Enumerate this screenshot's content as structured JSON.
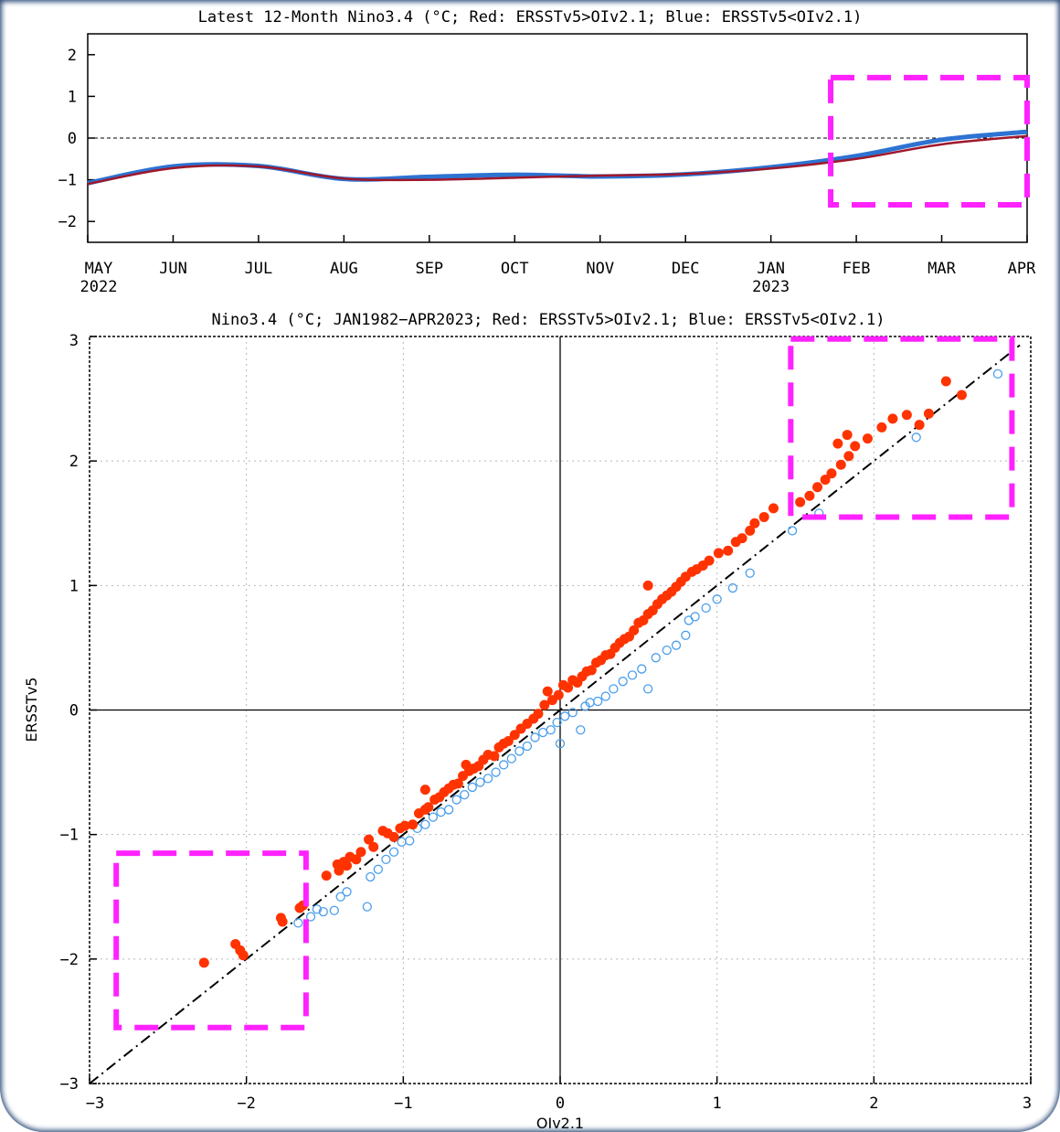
{
  "chart_data": [
    {
      "type": "line",
      "title": "Latest 12-Month Nino3.4 (°C; Red: ERSSTv5>OIv2.1; Blue: ERSSTv5<OIv2.1)",
      "x_tick_labels": [
        "MAY",
        "JUN",
        "JUL",
        "AUG",
        "SEP",
        "OCT",
        "NOV",
        "DEC",
        "JAN",
        "FEB",
        "MAR",
        "APR"
      ],
      "x_year_labels": [
        "2022",
        "2023"
      ],
      "y_tick_labels": [
        "2",
        "1",
        "0",
        "−1",
        "−2"
      ],
      "ylim": [
        -2.5,
        2.5
      ],
      "zero_line": "dashed",
      "series": [
        {
          "values": [
            -1.08,
            -0.68,
            -0.67,
            -0.98,
            -0.93,
            -0.88,
            -0.92,
            -0.87,
            -0.7,
            -0.43,
            -0.04,
            0.15
          ],
          "color": "#2d73d2"
        },
        {
          "values": [
            -1.1,
            -0.72,
            -0.68,
            -0.97,
            -1.0,
            -0.95,
            -0.9,
            -0.86,
            -0.73,
            -0.5,
            -0.15,
            0.05
          ],
          "color": "#a0172b"
        }
      ],
      "highlight_box": {
        "x": [
          8.7,
          11.0
        ],
        "y": [
          -1.6,
          1.45
        ],
        "color": "#ff22ff",
        "style": "dashed"
      }
    },
    {
      "type": "scatter",
      "title": "Nino3.4 (°C; JAN1982−APR2023; Red: ERSSTv5>OIv2.1; Blue: ERSSTv5<OIv2.1)",
      "xlabel": "OIv2.1",
      "ylabel": "ERSSTv5",
      "xlim": [
        -3,
        3
      ],
      "ylim": [
        -3,
        3
      ],
      "x_tick_labels": [
        "−3",
        "−2",
        "−1",
        "0",
        "1",
        "2",
        "3"
      ],
      "y_tick_labels": [
        "−3",
        "−2",
        "−1",
        "0",
        "1",
        "2",
        "3"
      ],
      "grid": true,
      "one_to_one_line": "dash-dot",
      "colors": {
        "above": "#ff3300",
        "below": "#4a9eea",
        "highlight": "#ff22ff"
      },
      "highlight_boxes": [
        {
          "x": [
            1.47,
            2.88
          ],
          "y": [
            1.55,
            2.98
          ]
        },
        {
          "x": [
            -2.83,
            -1.62
          ],
          "y": [
            -2.55,
            -1.15
          ]
        }
      ],
      "points_above": [
        [
          -2.27,
          -2.03
        ],
        [
          -2.07,
          -1.88
        ],
        [
          -2.04,
          -1.93
        ],
        [
          -2.02,
          -1.97
        ],
        [
          -1.77,
          -1.7
        ],
        [
          -1.78,
          -1.67
        ],
        [
          -1.66,
          -1.59
        ],
        [
          -1.64,
          -1.57
        ],
        [
          -1.49,
          -1.33
        ],
        [
          -1.42,
          -1.24
        ],
        [
          -1.41,
          -1.29
        ],
        [
          -1.38,
          -1.22
        ],
        [
          -1.36,
          -1.25
        ],
        [
          -1.34,
          -1.18
        ],
        [
          -1.3,
          -1.2
        ],
        [
          -1.27,
          -1.14
        ],
        [
          -1.22,
          -1.04
        ],
        [
          -1.19,
          -1.1
        ],
        [
          -1.13,
          -0.97
        ],
        [
          -1.1,
          -0.99
        ],
        [
          -1.06,
          -1.02
        ],
        [
          -1.02,
          -0.95
        ],
        [
          -0.99,
          -0.93
        ],
        [
          -0.94,
          -0.92
        ],
        [
          -0.9,
          -0.83
        ],
        [
          -0.86,
          -0.8
        ],
        [
          -0.84,
          -0.78
        ],
        [
          -0.8,
          -0.72
        ],
        [
          -0.86,
          -0.64
        ],
        [
          -0.77,
          -0.7
        ],
        [
          -0.74,
          -0.66
        ],
        [
          -0.71,
          -0.63
        ],
        [
          -0.68,
          -0.6
        ],
        [
          -0.65,
          -0.59
        ],
        [
          -0.62,
          -0.53
        ],
        [
          -0.58,
          -0.49
        ],
        [
          -0.6,
          -0.44
        ],
        [
          -0.55,
          -0.47
        ],
        [
          -0.52,
          -0.45
        ],
        [
          -0.49,
          -0.4
        ],
        [
          -0.46,
          -0.36
        ],
        [
          -0.42,
          -0.37
        ],
        [
          -0.39,
          -0.3
        ],
        [
          -0.36,
          -0.27
        ],
        [
          -0.33,
          -0.25
        ],
        [
          -0.29,
          -0.2
        ],
        [
          -0.25,
          -0.15
        ],
        [
          -0.21,
          -0.11
        ],
        [
          -0.17,
          -0.07
        ],
        [
          -0.14,
          -0.03
        ],
        [
          -0.1,
          0.04
        ],
        [
          -0.08,
          0.15
        ],
        [
          -0.05,
          0.08
        ],
        [
          -0.01,
          0.12
        ],
        [
          0.02,
          0.2
        ],
        [
          0.05,
          0.18
        ],
        [
          0.08,
          0.24
        ],
        [
          0.11,
          0.22
        ],
        [
          0.14,
          0.27
        ],
        [
          0.17,
          0.31
        ],
        [
          0.2,
          0.32
        ],
        [
          0.23,
          0.38
        ],
        [
          0.26,
          0.4
        ],
        [
          0.29,
          0.44
        ],
        [
          0.32,
          0.45
        ],
        [
          0.35,
          0.5
        ],
        [
          0.38,
          0.54
        ],
        [
          0.41,
          0.57
        ],
        [
          0.44,
          0.59
        ],
        [
          0.47,
          0.64
        ],
        [
          0.5,
          0.7
        ],
        [
          0.53,
          0.72
        ],
        [
          0.56,
          0.77
        ],
        [
          0.56,
          1.0
        ],
        [
          0.59,
          0.8
        ],
        [
          0.62,
          0.85
        ],
        [
          0.65,
          0.89
        ],
        [
          0.68,
          0.92
        ],
        [
          0.71,
          0.95
        ],
        [
          0.74,
          0.99
        ],
        [
          0.77,
          1.03
        ],
        [
          0.8,
          1.07
        ],
        [
          0.84,
          1.11
        ],
        [
          0.87,
          1.13
        ],
        [
          0.91,
          1.16
        ],
        [
          0.95,
          1.2
        ],
        [
          1.01,
          1.26
        ],
        [
          1.07,
          1.28
        ],
        [
          1.12,
          1.35
        ],
        [
          1.16,
          1.38
        ],
        [
          1.21,
          1.44
        ],
        [
          1.24,
          1.5
        ],
        [
          1.3,
          1.55
        ],
        [
          1.36,
          1.62
        ],
        [
          1.53,
          1.67
        ],
        [
          1.59,
          1.72
        ],
        [
          1.64,
          1.79
        ],
        [
          1.69,
          1.85
        ],
        [
          1.73,
          1.9
        ],
        [
          1.79,
          1.97
        ],
        [
          1.84,
          2.04
        ],
        [
          1.88,
          2.12
        ],
        [
          1.96,
          2.18
        ],
        [
          2.05,
          2.27
        ],
        [
          2.12,
          2.34
        ],
        [
          2.21,
          2.37
        ],
        [
          2.29,
          2.29
        ],
        [
          2.35,
          2.38
        ],
        [
          2.46,
          2.64
        ],
        [
          2.56,
          2.53
        ],
        [
          1.83,
          2.21
        ],
        [
          1.77,
          2.14
        ]
      ],
      "points_below": [
        [
          -1.67,
          -1.71
        ],
        [
          -1.59,
          -1.66
        ],
        [
          -1.55,
          -1.6
        ],
        [
          -1.51,
          -1.62
        ],
        [
          -1.44,
          -1.61
        ],
        [
          -1.4,
          -1.5
        ],
        [
          -1.36,
          -1.46
        ],
        [
          -1.23,
          -1.58
        ],
        [
          -1.21,
          -1.34
        ],
        [
          -1.16,
          -1.28
        ],
        [
          -1.11,
          -1.2
        ],
        [
          -1.06,
          -1.14
        ],
        [
          -1.01,
          -1.06
        ],
        [
          -0.96,
          -1.05
        ],
        [
          -0.91,
          -0.95
        ],
        [
          -0.86,
          -0.92
        ],
        [
          -0.81,
          -0.86
        ],
        [
          -0.76,
          -0.82
        ],
        [
          -0.71,
          -0.8
        ],
        [
          -0.66,
          -0.72
        ],
        [
          -0.61,
          -0.68
        ],
        [
          -0.56,
          -0.62
        ],
        [
          -0.51,
          -0.58
        ],
        [
          -0.46,
          -0.55
        ],
        [
          -0.41,
          -0.5
        ],
        [
          -0.36,
          -0.44
        ],
        [
          -0.31,
          -0.39
        ],
        [
          -0.26,
          -0.33
        ],
        [
          -0.21,
          -0.29
        ],
        [
          -0.16,
          -0.22
        ],
        [
          -0.11,
          -0.18
        ],
        [
          -0.06,
          -0.16
        ],
        [
          -0.02,
          -0.1
        ],
        [
          0.0,
          -0.27
        ],
        [
          0.03,
          -0.05
        ],
        [
          0.08,
          -0.02
        ],
        [
          0.13,
          -0.16
        ],
        [
          0.16,
          0.03
        ],
        [
          0.19,
          0.06
        ],
        [
          0.24,
          0.07
        ],
        [
          0.29,
          0.11
        ],
        [
          0.34,
          0.17
        ],
        [
          0.4,
          0.23
        ],
        [
          0.46,
          0.28
        ],
        [
          0.52,
          0.33
        ],
        [
          0.56,
          0.17
        ],
        [
          0.61,
          0.42
        ],
        [
          0.68,
          0.48
        ],
        [
          0.74,
          0.52
        ],
        [
          0.8,
          0.6
        ],
        [
          0.82,
          0.72
        ],
        [
          0.86,
          0.75
        ],
        [
          0.93,
          0.82
        ],
        [
          1.0,
          0.89
        ],
        [
          1.1,
          0.98
        ],
        [
          1.21,
          1.1
        ],
        [
          1.48,
          1.44
        ],
        [
          1.65,
          1.58
        ],
        [
          2.27,
          2.19
        ],
        [
          2.79,
          2.7
        ]
      ]
    }
  ]
}
